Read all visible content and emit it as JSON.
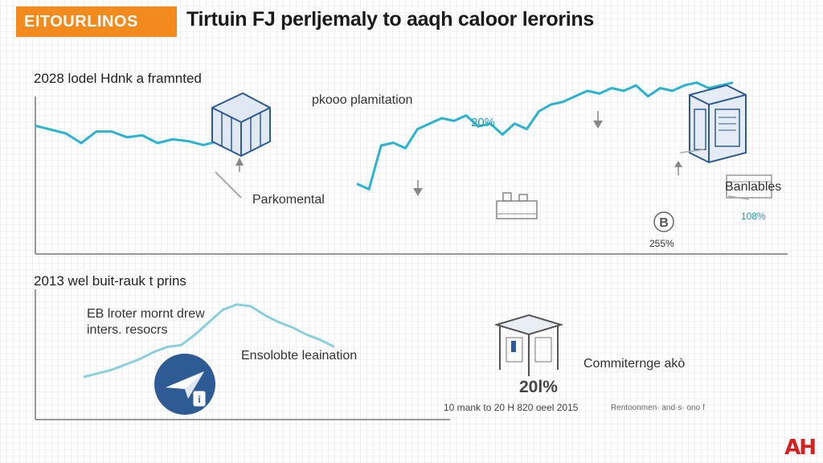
{
  "header": {
    "badge": "EITOURLINOS",
    "title": "Tirtuin FJ perljemaly to aaqh caloor lerorins"
  },
  "colors": {
    "accent": "#f28a1e",
    "line": "#2bb3cf",
    "line_light": "#8ccfdc",
    "icon": "#2f5b94",
    "logo": "#d62020"
  },
  "annotations": {
    "top_panel_title": "2028 lodel Hdnk a framnted",
    "plantation": "pkooo plamitation",
    "pct_top": "20%",
    "parkomental": "Parkomental",
    "banlables": "Banlables",
    "pct_right": "108%",
    "pct_bitcoin": "255%",
    "bottom_panel_title": "2013 wel buit-rauk t prins",
    "eb_line1": "EB lroter mornt drew",
    "eb_line2": "inters. resocrs",
    "ensolbte": "Ensolobte leaination",
    "pct_bottom": "20l%",
    "commitering": "Commiterngе akò",
    "footer_range": "10 mank to 20 H 820 oeel 2015",
    "footer_right": "Rentoonmen· and·s· ono f",
    "logo": "AH"
  },
  "icons": {
    "cube_left": "cube-icon",
    "cube_right": "building-box-icon",
    "arrow_up": "arrow-up-icon",
    "arrow_down": "arrow-down-icon",
    "bitcoin": "bitcoin-icon",
    "paper_plane": "paper-plane-icon",
    "gazebo": "pavilion-icon"
  },
  "chart_data": [
    {
      "type": "line",
      "title": "2028 lodel Hdnk a framnted",
      "series": [
        {
          "values": [
            78,
            74,
            70,
            60,
            72,
            72,
            66,
            68,
            60,
            64,
            62,
            58,
            62
          ]
        },
        {
          "values": [
            22,
            18,
            50,
            52,
            48,
            62,
            66,
            70,
            68,
            72,
            64,
            66,
            58,
            66,
            62,
            75,
            80,
            82,
            86,
            90,
            88,
            92,
            90,
            94,
            86,
            92,
            90,
            94,
            96,
            92,
            94,
            96
          ]
        }
      ]
    },
    {
      "type": "line",
      "title": "2013 wel buit-rauk t prins",
      "series": [
        {
          "values": [
            10,
            14,
            18,
            24,
            30,
            38,
            44,
            46,
            58,
            72,
            86,
            92,
            90,
            80,
            72,
            66,
            58,
            52,
            44
          ]
        }
      ]
    }
  ]
}
